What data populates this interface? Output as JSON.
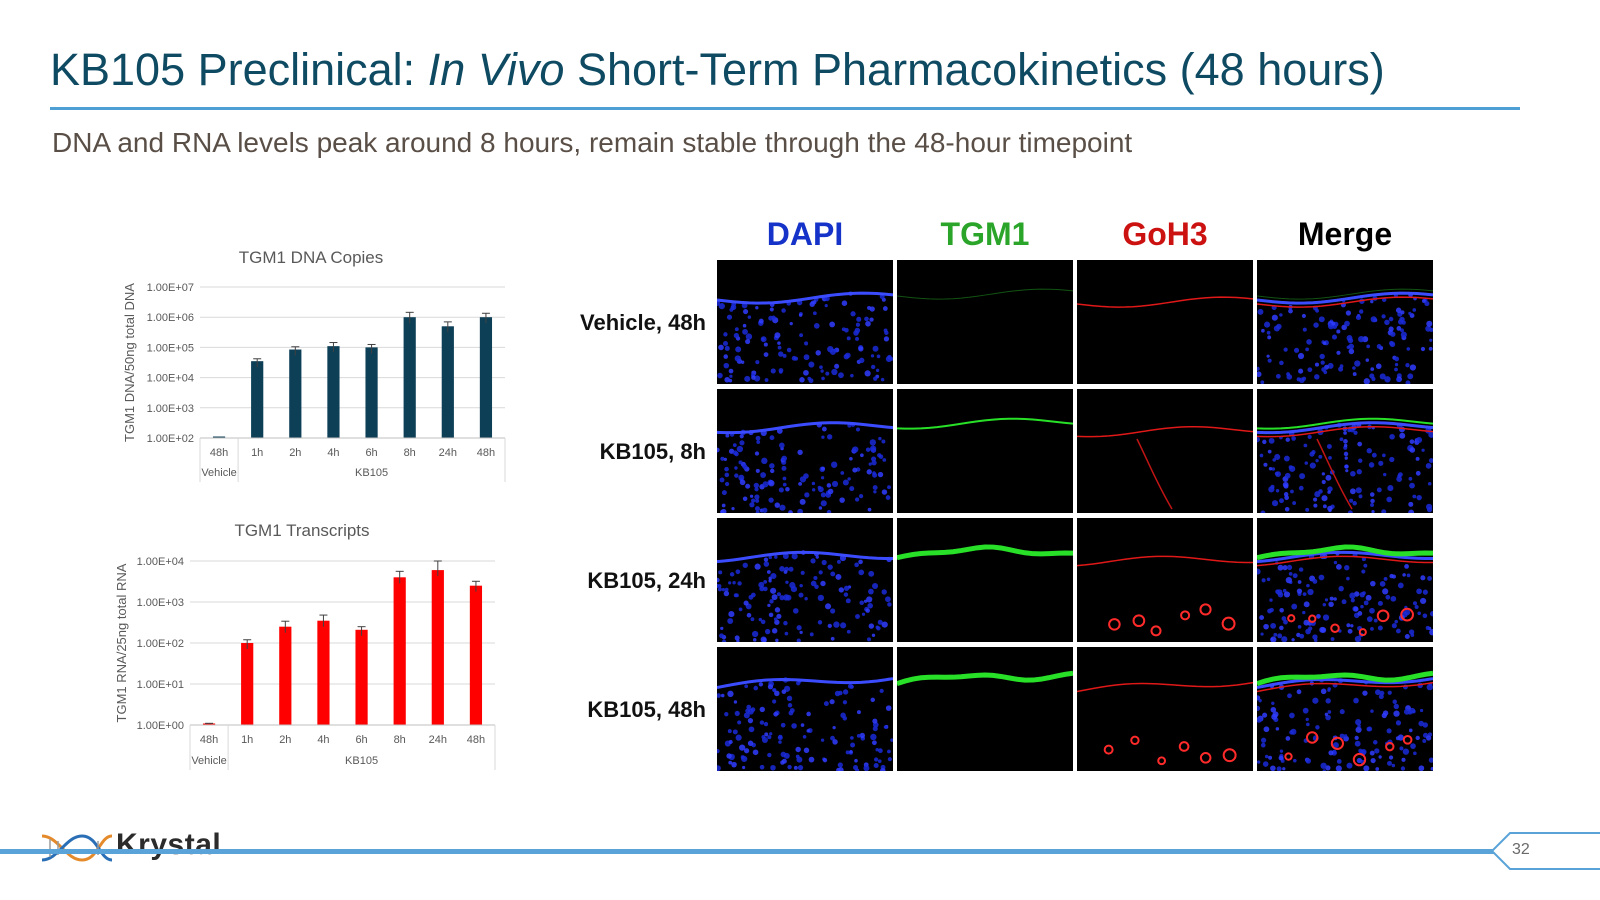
{
  "slide": {
    "title_prefix": "KB105 Preclinical: ",
    "title_italic": "In Vivo",
    "title_suffix": " Short-Term Pharmacokinetics (48 hours)",
    "subtitle": "DNA and RNA levels peak around 8 hours, remain stable through the 48-hour timepoint",
    "page_number": "32"
  },
  "logo": {
    "text": "Krystal"
  },
  "chart_data": [
    {
      "type": "bar",
      "title": "TGM1 DNA Copies",
      "ylabel": "TGM1 DNA/50ng total DNA",
      "xlabel": "",
      "yscale": "log",
      "ylim": [
        100,
        10000000
      ],
      "yticks": [
        "1.00E+02",
        "1.00E+03",
        "1.00E+04",
        "1.00E+05",
        "1.00E+06",
        "1.00E+07"
      ],
      "categories": [
        "48h",
        "1h",
        "2h",
        "4h",
        "6h",
        "8h",
        "24h",
        "48h"
      ],
      "groups": [
        {
          "label": "Vehicle",
          "count": 1
        },
        {
          "label": "KB105",
          "count": 7
        }
      ],
      "values": [
        100,
        35000,
        85000,
        110000,
        100000,
        1000000,
        500000,
        1000000
      ],
      "error_upper": [
        100,
        42000,
        105000,
        145000,
        125000,
        1450000,
        700000,
        1350000
      ],
      "bar_color": "#0d3f57",
      "grid": true
    },
    {
      "type": "bar",
      "title": "TGM1 Transcripts",
      "ylabel": "TGM1 RNA/25ng total RNA",
      "xlabel": "",
      "yscale": "log",
      "ylim": [
        1,
        10000
      ],
      "yticks": [
        "1.00E+00",
        "1.00E+01",
        "1.00E+02",
        "1.00E+03",
        "1.00E+04"
      ],
      "categories": [
        "48h",
        "1h",
        "2h",
        "4h",
        "6h",
        "8h",
        "24h",
        "48h"
      ],
      "groups": [
        {
          "label": "Vehicle",
          "count": 1
        },
        {
          "label": "KB105",
          "count": 7
        }
      ],
      "values": [
        1,
        100,
        250,
        350,
        210,
        4000,
        6000,
        2500
      ],
      "error_upper": [
        1.1,
        120,
        340,
        480,
        250,
        5600,
        10000,
        3200
      ],
      "bar_color": "#ff0000",
      "grid": true
    }
  ],
  "micrographs": {
    "columns": [
      {
        "label": "DAPI",
        "color": "#1533c8"
      },
      {
        "label": "TGM1",
        "color": "#2aa52a"
      },
      {
        "label": "GoH3",
        "color": "#cc1111"
      },
      {
        "label": "Merge",
        "color": "#000000"
      }
    ],
    "rows": [
      {
        "label": "Vehicle,  48h"
      },
      {
        "label": "KB105, 8h"
      },
      {
        "label": "KB105, 24h"
      },
      {
        "label": "KB105, 48h"
      }
    ]
  }
}
